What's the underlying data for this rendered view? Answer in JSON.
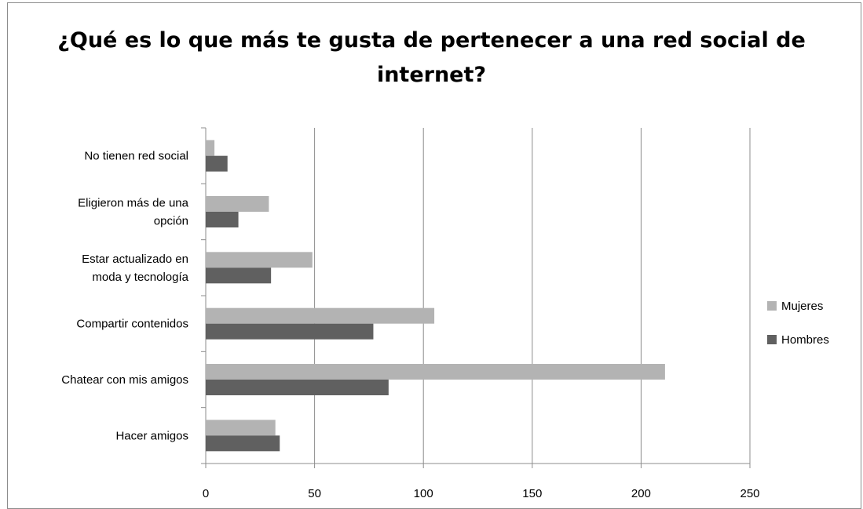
{
  "chart_data": {
    "type": "bar",
    "orientation": "horizontal",
    "title": "¿Qué es lo que más te gusta de pertenecer a una red social de internet?",
    "categories": [
      "Hacer amigos",
      "Chatear con mis amigos",
      "Compartir contenidos",
      "Estar actualizado en moda y tecnología",
      "Eligieron más de una opción",
      "No tienen red social"
    ],
    "category_lines": [
      [
        "Hacer amigos"
      ],
      [
        "Chatear con mis amigos"
      ],
      [
        "Compartir contenidos"
      ],
      [
        "Estar actualizado  en",
        "moda y tecnología"
      ],
      [
        "Eligieron más  de una",
        "opción"
      ],
      [
        "No tienen red social"
      ]
    ],
    "series": [
      {
        "name": "Mujeres",
        "color": "#b3b3b3",
        "values": [
          32,
          211,
          105,
          49,
          29,
          4
        ]
      },
      {
        "name": "Hombres",
        "color": "#606060",
        "values": [
          34,
          84,
          77,
          30,
          15,
          10
        ]
      }
    ],
    "xlim": [
      0,
      250
    ],
    "xticks": [
      "0",
      "50",
      "100",
      "150",
      "200",
      "250"
    ],
    "xtick_values": [
      0,
      50,
      100,
      150,
      200,
      250
    ],
    "grid": "vertical",
    "legend_position": "right",
    "gridline_color": "#8c8c8c"
  }
}
